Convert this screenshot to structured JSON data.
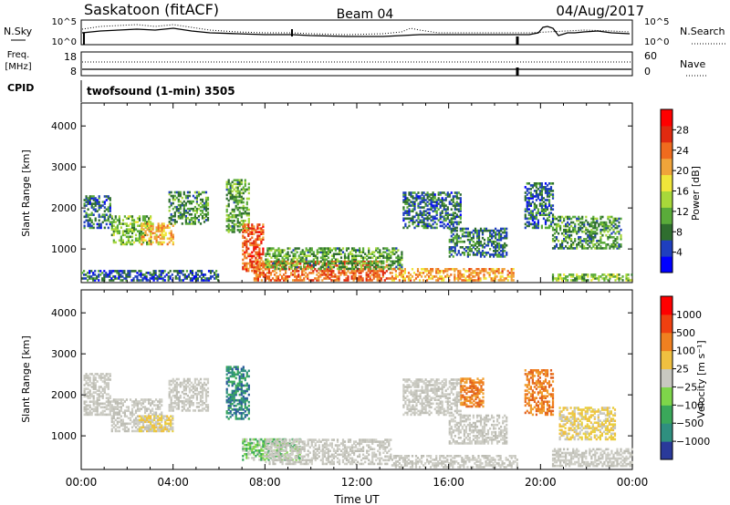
{
  "header": {
    "station": "Saskatoon (fitACF)",
    "beam": "Beam 04",
    "date": "04/Aug/2017"
  },
  "noise_panel": {
    "left_label": "N.Sky",
    "right_label": "N.Search",
    "left_ticks": [
      "10^5",
      "10^0"
    ],
    "right_ticks": [
      "10^5",
      "10^0"
    ]
  },
  "freq_panel": {
    "left_label": "Freq.",
    "left_unit": "[MHz]",
    "right_label": "Nave",
    "left_ticks": [
      "18",
      "8"
    ],
    "right_ticks": [
      "60",
      "0"
    ]
  },
  "cpid": {
    "label": "CPID",
    "value": "twofsound (1-min) 3505"
  },
  "chart_data": [
    {
      "type": "heatmap",
      "name": "power",
      "xlabel": "",
      "ylabel": "Slant Range [km]",
      "x_ticks": [
        "00:00",
        "04:00",
        "08:00",
        "12:00",
        "16:00",
        "20:00",
        "00:00"
      ],
      "y_ticks": [
        1000,
        2000,
        3000,
        4000
      ],
      "ylim": [
        180,
        4560
      ],
      "xlim_hours": [
        0,
        24
      ],
      "colorbar": {
        "label": "Power [dB]",
        "ticks": [
          4,
          8,
          12,
          16,
          20,
          24,
          28
        ],
        "range": [
          0,
          32
        ],
        "colors": [
          "#0000ff",
          "#1f3fbf",
          "#2f6e2f",
          "#5aab3a",
          "#a8d83a",
          "#f0e63a",
          "#f0a43a",
          "#ef6b1e",
          "#e02a10",
          "#ff0000"
        ]
      },
      "regions": [
        {
          "t0": 0.1,
          "t1": 1.3,
          "r0": 1500,
          "r1": 2300,
          "v": 6
        },
        {
          "t0": 1.3,
          "t1": 3.0,
          "r0": 1100,
          "r1": 1800,
          "v": 12
        },
        {
          "t0": 2.6,
          "t1": 4.0,
          "r0": 1100,
          "r1": 1600,
          "v": 20
        },
        {
          "t0": 3.8,
          "t1": 5.5,
          "r0": 1600,
          "r1": 2400,
          "v": 9
        },
        {
          "t0": 6.3,
          "t1": 7.3,
          "r0": 1400,
          "r1": 2700,
          "v": 10
        },
        {
          "t0": 7.0,
          "t1": 7.9,
          "r0": 450,
          "r1": 1600,
          "v": 26
        },
        {
          "t0": 7.5,
          "t1": 13.5,
          "r0": 220,
          "r1": 700,
          "v": 25
        },
        {
          "t0": 8.0,
          "t1": 14.0,
          "r0": 500,
          "r1": 1000,
          "v": 10
        },
        {
          "t0": 13.5,
          "t1": 18.8,
          "r0": 220,
          "r1": 500,
          "v": 22
        },
        {
          "t0": 14.0,
          "t1": 16.5,
          "r0": 1500,
          "r1": 2400,
          "v": 6
        },
        {
          "t0": 16.0,
          "t1": 18.5,
          "r0": 800,
          "r1": 1500,
          "v": 7
        },
        {
          "t0": 19.3,
          "t1": 20.5,
          "r0": 1500,
          "r1": 2600,
          "v": 6
        },
        {
          "t0": 20.5,
          "t1": 23.5,
          "r0": 1000,
          "r1": 1800,
          "v": 9
        },
        {
          "t0": 0.0,
          "t1": 6.0,
          "r0": 220,
          "r1": 450,
          "v": 5
        },
        {
          "t0": 20.5,
          "t1": 24.0,
          "r0": 220,
          "r1": 400,
          "v": 12
        }
      ]
    },
    {
      "type": "heatmap",
      "name": "velocity",
      "xlabel": "Time UT",
      "ylabel": "Slant Range [km]",
      "x_ticks": [
        "00:00",
        "04:00",
        "08:00",
        "12:00",
        "16:00",
        "20:00",
        "00:00"
      ],
      "y_ticks": [
        1000,
        2000,
        3000,
        4000
      ],
      "ylim": [
        180,
        4560
      ],
      "xlim_hours": [
        0,
        24
      ],
      "colorbar": {
        "label": "Velocity [m s⁻¹]",
        "ticks": [
          "1000",
          "500",
          "100",
          "25",
          "−25",
          "−100",
          "−500",
          "−1000"
        ],
        "colors": [
          "#2a3a9a",
          "#2f8f7f",
          "#3aa85a",
          "#7ed64a",
          "#c8c8c0",
          "#f0c040",
          "#f08020",
          "#f04010",
          "#ff0000"
        ]
      },
      "regions": [
        {
          "t0": 0.1,
          "t1": 1.3,
          "r0": 1500,
          "r1": 2500,
          "v": "gray"
        },
        {
          "t0": 1.3,
          "t1": 3.5,
          "r0": 1100,
          "r1": 1900,
          "v": "gray"
        },
        {
          "t0": 2.5,
          "t1": 4.0,
          "r0": 1100,
          "r1": 1500,
          "v": "yellow"
        },
        {
          "t0": 3.8,
          "t1": 5.5,
          "r0": 1600,
          "r1": 2400,
          "v": "gray"
        },
        {
          "t0": 6.3,
          "t1": 7.3,
          "r0": 1400,
          "r1": 2700,
          "v": "teal"
        },
        {
          "t0": 7.0,
          "t1": 9.5,
          "r0": 400,
          "r1": 900,
          "v": "lightgreen"
        },
        {
          "t0": 8.0,
          "t1": 13.5,
          "r0": 300,
          "r1": 900,
          "v": "gray"
        },
        {
          "t0": 13.5,
          "t1": 19.0,
          "r0": 220,
          "r1": 500,
          "v": "gray"
        },
        {
          "t0": 14.0,
          "t1": 16.5,
          "r0": 1500,
          "r1": 2400,
          "v": "gray"
        },
        {
          "t0": 16.5,
          "t1": 17.5,
          "r0": 1700,
          "r1": 2400,
          "v": "orange"
        },
        {
          "t0": 16.0,
          "t1": 18.5,
          "r0": 800,
          "r1": 1500,
          "v": "gray"
        },
        {
          "t0": 19.3,
          "t1": 20.5,
          "r0": 1500,
          "r1": 2600,
          "v": "orange"
        },
        {
          "t0": 20.8,
          "t1": 23.2,
          "r0": 900,
          "r1": 1700,
          "v": "yellow"
        },
        {
          "t0": 20.5,
          "t1": 24.0,
          "r0": 250,
          "r1": 700,
          "v": "gray"
        }
      ]
    }
  ]
}
